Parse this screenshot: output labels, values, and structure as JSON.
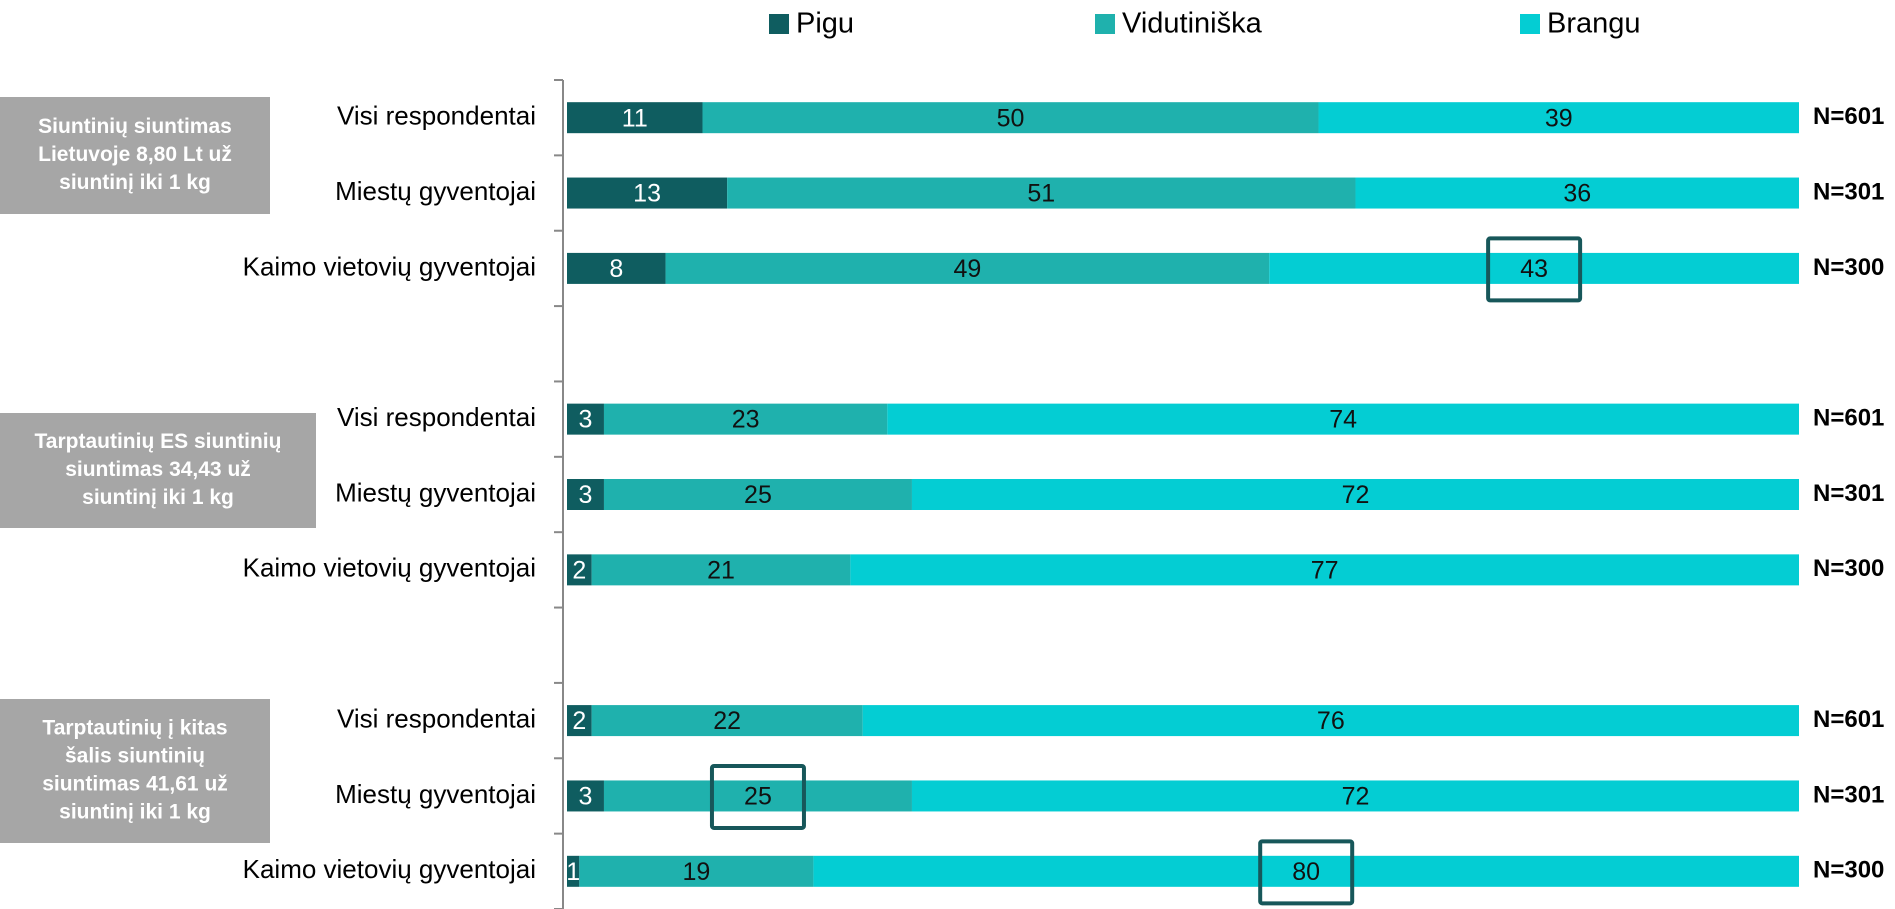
{
  "chart_data": {
    "type": "stacked_barh",
    "categories": [
      "Visi respondentai",
      "Miestų gyventojai",
      "Kaimo vietovių gyventojai",
      null,
      "Visi respondentai",
      "Miestų gyventojai",
      "Kaimo vietovių gyventojai",
      null,
      "Visi respondentai",
      "Miestų gyventojai",
      "Kaimo vietovių gyventojai"
    ],
    "series": [
      {
        "name": "Pigu",
        "color": "#0f5d60",
        "values": [
          11,
          13,
          8,
          null,
          3,
          3,
          2,
          null,
          2,
          3,
          1
        ]
      },
      {
        "name": "Vidutiniška",
        "color": "#1fb1ad",
        "values": [
          50,
          51,
          49,
          null,
          23,
          25,
          21,
          null,
          22,
          25,
          19
        ]
      },
      {
        "name": "Brangu",
        "color": "#04cdd3",
        "values": [
          39,
          36,
          43,
          null,
          74,
          72,
          77,
          null,
          76,
          72,
          80
        ]
      }
    ],
    "n_labels": [
      "N=601",
      "N=301",
      "N=300",
      null,
      "N=601",
      "N=301",
      "N=300",
      null,
      "N=601",
      "N=301",
      "N=300"
    ],
    "group_labels": [
      [
        "Siuntinių siuntimas",
        "Lietuvoje 8,80 Lt už",
        "siuntinį iki 1 kg"
      ],
      [
        "Tarptautinių ES siuntinių",
        "siuntimas 34,43 už",
        "siuntinį iki 1 kg"
      ],
      [
        "Tarptautinių į kitas",
        "šalis siuntinių",
        "siuntimas  41,61 už",
        "siuntinį iki 1 kg"
      ]
    ],
    "highlighted": [
      {
        "series": 2,
        "category": 2
      },
      {
        "series": 1,
        "category": 9
      },
      {
        "series": 2,
        "category": 10
      }
    ],
    "xlim": [
      0,
      100
    ],
    "legend": "top"
  }
}
